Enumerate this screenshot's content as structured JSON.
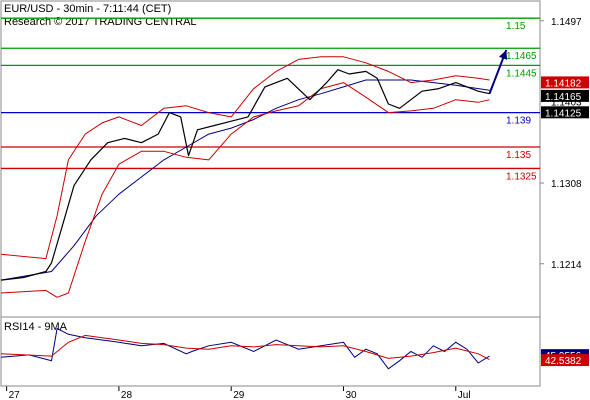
{
  "header": {
    "title": "EUR/USD - 30min - 7:11:44 (CET)",
    "copyright": "Research © 2017 TRADING CENTRAL"
  },
  "rsi_panel": {
    "label": "RSI14 - 9MA"
  },
  "chart_data": [
    {
      "type": "line",
      "title": "EUR/USD - 30min - 7:11:44 (CET)",
      "xlabel": "",
      "ylabel": "",
      "ylim": [
        1.1152,
        1.152
      ],
      "grid": false,
      "x_ticks": [
        {
          "label": "27",
          "pos": 0.0
        },
        {
          "label": "28",
          "pos": 1.0
        },
        {
          "label": "29",
          "pos": 2.0
        },
        {
          "label": "30",
          "pos": 3.0
        },
        {
          "label": "Jul",
          "pos": 4.0
        }
      ],
      "xlim": [
        -0.05,
        4.75
      ],
      "y_ticks": [
        {
          "label": "1.1497",
          "value": 1.1497
        },
        {
          "label": "1.1403",
          "value": 1.1403
        },
        {
          "label": "1.1308",
          "value": 1.1308
        },
        {
          "label": "1.1214",
          "value": 1.1214
        }
      ],
      "levels": [
        {
          "label": "1.15",
          "value": 1.15,
          "color": "#009900"
        },
        {
          "label": "1.1465",
          "value": 1.1465,
          "color": "#009900"
        },
        {
          "label": "1.1445",
          "value": 1.1445,
          "color": "#009900"
        },
        {
          "label": "1.139",
          "value": 1.139,
          "color": "#0000cc"
        },
        {
          "label": "1.135",
          "value": 1.135,
          "color": "#cc0000"
        },
        {
          "label": "1.1325",
          "value": 1.1325,
          "color": "#cc0000"
        }
      ],
      "price_tags": [
        {
          "label": "1.14182",
          "value": 1.14182,
          "color": "#cc0000"
        },
        {
          "label": "1.14165",
          "value": 1.14165,
          "color": "#000000"
        },
        {
          "label": "1.14125",
          "value": 1.14125,
          "color": "#000000"
        }
      ],
      "projection": {
        "from": [
          4.3,
          1.1412
        ],
        "to": [
          4.45,
          1.1463
        ],
        "color": "#000080"
      },
      "series": [
        {
          "style": "price",
          "color": "#000000",
          "x": [
            -0.05,
            0.15,
            0.35,
            0.4,
            0.5,
            0.6,
            0.75,
            0.9,
            1.05,
            1.2,
            1.35,
            1.45,
            1.55,
            1.62,
            1.7,
            1.85,
            2.0,
            2.15,
            2.3,
            2.5,
            2.7,
            2.85,
            2.95,
            3.05,
            3.2,
            3.3,
            3.4,
            3.5,
            3.6,
            3.7,
            3.85,
            4.0,
            4.1,
            4.2,
            4.3
          ],
          "values": [
            1.1195,
            1.1198,
            1.1205,
            1.1215,
            1.126,
            1.1305,
            1.1335,
            1.1355,
            1.136,
            1.1355,
            1.1365,
            1.139,
            1.1385,
            1.134,
            1.137,
            1.1375,
            1.138,
            1.1385,
            1.142,
            1.143,
            1.1405,
            1.1425,
            1.144,
            1.1435,
            1.1438,
            1.143,
            1.14,
            1.1395,
            1.1405,
            1.1415,
            1.1418,
            1.1425,
            1.142,
            1.1415,
            1.1412
          ]
        },
        {
          "style": "moving-average",
          "color": "#000080",
          "x": [
            -0.05,
            0.4,
            0.6,
            0.8,
            1.0,
            1.2,
            1.4,
            1.6,
            1.8,
            2.0,
            2.2,
            2.4,
            2.6,
            2.8,
            3.0,
            3.2,
            3.4,
            3.6,
            3.8,
            4.0,
            4.2,
            4.3
          ],
          "values": [
            1.1195,
            1.1205,
            1.1235,
            1.127,
            1.1295,
            1.1315,
            1.1335,
            1.135,
            1.1365,
            1.1372,
            1.1382,
            1.1395,
            1.1405,
            1.1412,
            1.142,
            1.1428,
            1.1428,
            1.1428,
            1.1425,
            1.1422,
            1.1418,
            1.1416
          ]
        },
        {
          "style": "bollinger-upper",
          "color": "#cc0000",
          "x": [
            -0.05,
            0.35,
            0.45,
            0.55,
            0.7,
            0.85,
            1.0,
            1.2,
            1.4,
            1.6,
            1.8,
            2.0,
            2.2,
            2.4,
            2.6,
            2.8,
            3.0,
            3.2,
            3.4,
            3.6,
            3.8,
            4.0,
            4.2,
            4.3
          ],
          "values": [
            1.1225,
            1.122,
            1.127,
            1.1335,
            1.1365,
            1.1378,
            1.1385,
            1.1375,
            1.1395,
            1.1398,
            1.139,
            1.1385,
            1.1418,
            1.1438,
            1.1452,
            1.1455,
            1.1455,
            1.1448,
            1.1438,
            1.1425,
            1.1428,
            1.1433,
            1.143,
            1.1428
          ]
        },
        {
          "style": "bollinger-lower",
          "color": "#cc0000",
          "x": [
            -0.05,
            0.35,
            0.45,
            0.55,
            0.7,
            0.85,
            1.0,
            1.2,
            1.4,
            1.6,
            1.8,
            2.0,
            2.2,
            2.4,
            2.6,
            2.8,
            3.0,
            3.2,
            3.4,
            3.6,
            3.8,
            4.0,
            4.2,
            4.3
          ],
          "values": [
            1.118,
            1.1183,
            1.1175,
            1.118,
            1.124,
            1.1295,
            1.133,
            1.1345,
            1.1345,
            1.1338,
            1.1335,
            1.1365,
            1.1385,
            1.1392,
            1.1398,
            1.1418,
            1.1425,
            1.1408,
            1.139,
            1.1392,
            1.1395,
            1.1405,
            1.1402,
            1.1405
          ]
        }
      ]
    },
    {
      "type": "line",
      "title": "RSI14 - 9MA",
      "ylim": [
        20,
        80
      ],
      "xlim": [
        -0.05,
        4.75
      ],
      "y_ticks_labels": [],
      "price_tags": [
        {
          "label": "45.9556",
          "value": 45.9556,
          "color": "#000080"
        },
        {
          "label": "42.5382",
          "value": 42.5382,
          "color": "#cc0000"
        }
      ],
      "series": [
        {
          "style": "rsi",
          "color": "#000080",
          "x": [
            -0.05,
            0.2,
            0.4,
            0.45,
            0.55,
            0.7,
            0.85,
            1.0,
            1.2,
            1.4,
            1.6,
            1.65,
            1.8,
            2.0,
            2.2,
            2.4,
            2.6,
            2.8,
            3.0,
            3.1,
            3.2,
            3.3,
            3.4,
            3.5,
            3.6,
            3.7,
            3.8,
            3.9,
            4.0,
            4.1,
            4.2,
            4.3
          ],
          "values": [
            45,
            47,
            42,
            70,
            65,
            62,
            60,
            58,
            55,
            57,
            48,
            50,
            55,
            58,
            50,
            60,
            52,
            55,
            58,
            45,
            52,
            48,
            35,
            42,
            50,
            45,
            55,
            50,
            58,
            52,
            40,
            46
          ]
        },
        {
          "style": "rsi-ma",
          "color": "#cc0000",
          "x": [
            -0.05,
            0.4,
            0.55,
            0.7,
            0.85,
            1.0,
            1.2,
            1.4,
            1.6,
            1.8,
            2.0,
            2.2,
            2.4,
            2.6,
            2.8,
            3.0,
            3.2,
            3.4,
            3.6,
            3.8,
            4.0,
            4.2,
            4.3
          ],
          "values": [
            48,
            46,
            58,
            64,
            62,
            60,
            57,
            56,
            53,
            52,
            55,
            54,
            56,
            55,
            54,
            55,
            50,
            44,
            46,
            49,
            53,
            48,
            43
          ]
        }
      ]
    }
  ]
}
